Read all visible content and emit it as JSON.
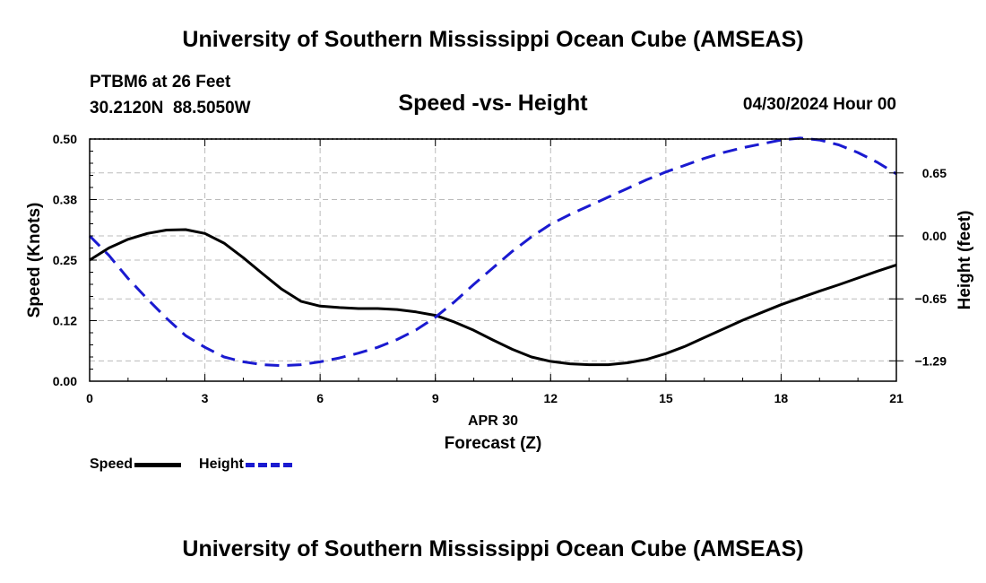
{
  "header": {
    "title": "University of Southern Mississippi Ocean Cube (AMSEAS)",
    "station_name": "PTBM6 at 26 Feet",
    "coordinates": "30.2120N  88.5050W",
    "chart_title": "Speed -vs- Height",
    "datetime": "04/30/2024 Hour 00"
  },
  "footer": {
    "title": "University of Southern Mississippi Ocean Cube (AMSEAS)"
  },
  "legend": {
    "speed_label": "Speed",
    "height_label": "Height"
  },
  "colors": {
    "speed": "#000000",
    "height": "#1a1ad0",
    "grid": "#bbbbbb"
  },
  "chart_data": {
    "type": "line",
    "xlabel_date": "APR 30",
    "xlabel": "Forecast (Z)",
    "ylabel": "Speed (Knots)",
    "y2label": "Height (feet)",
    "xlim": [
      0,
      21
    ],
    "ylim": [
      0,
      0.5
    ],
    "y2lim": [
      -1.5,
      1.0
    ],
    "x_ticks": [
      0,
      3,
      6,
      9,
      12,
      15,
      18,
      21
    ],
    "x_tick_labels": [
      "0",
      "3",
      "6",
      "9",
      "12",
      "15",
      "18",
      "21"
    ],
    "y_ticks": [
      0.0,
      0.125,
      0.25,
      0.375,
      0.5
    ],
    "y_tick_labels": [
      "0.00",
      "0.12",
      "0.25",
      "0.38",
      "0.50"
    ],
    "y2_ticks": [
      -1.29,
      -0.65,
      0.0,
      0.65
    ],
    "y2_tick_labels": [
      "−1.29",
      "−0.65",
      "0.00",
      "0.65"
    ],
    "series": [
      {
        "name": "Speed",
        "axis": "left",
        "style": "solid",
        "x": [
          0,
          0.5,
          1,
          1.5,
          2,
          2.5,
          3,
          3.5,
          4,
          4.5,
          5,
          5.5,
          6,
          6.5,
          7,
          7.5,
          8,
          8.5,
          9,
          9.5,
          10,
          10.5,
          11,
          11.5,
          12,
          12.5,
          13,
          13.5,
          14,
          14.5,
          15,
          15.5,
          16,
          16.5,
          17,
          17.5,
          18,
          18.5,
          19,
          19.5,
          20,
          20.5,
          21
        ],
        "values": [
          0.25,
          0.275,
          0.293,
          0.305,
          0.312,
          0.313,
          0.305,
          0.285,
          0.255,
          0.222,
          0.19,
          0.165,
          0.155,
          0.152,
          0.15,
          0.15,
          0.148,
          0.143,
          0.136,
          0.122,
          0.105,
          0.085,
          0.066,
          0.05,
          0.041,
          0.036,
          0.034,
          0.034,
          0.038,
          0.045,
          0.057,
          0.072,
          0.09,
          0.108,
          0.126,
          0.142,
          0.158,
          0.172,
          0.186,
          0.199,
          0.213,
          0.227,
          0.24
        ]
      },
      {
        "name": "Height",
        "axis": "right",
        "style": "dashed",
        "x": [
          0,
          0.5,
          1,
          1.5,
          2,
          2.5,
          3,
          3.5,
          4,
          4.5,
          5,
          5.5,
          6,
          6.5,
          7,
          7.5,
          8,
          8.5,
          9,
          9.5,
          10,
          10.5,
          11,
          11.5,
          12,
          12.5,
          13,
          13.5,
          14,
          14.5,
          15,
          15.5,
          16,
          16.5,
          17,
          17.5,
          18,
          18.5,
          19,
          19.5,
          20,
          20.5,
          21
        ],
        "values": [
          0.0,
          -0.2,
          -0.44,
          -0.65,
          -0.85,
          -1.03,
          -1.15,
          -1.25,
          -1.3,
          -1.33,
          -1.34,
          -1.33,
          -1.3,
          -1.26,
          -1.21,
          -1.15,
          -1.07,
          -0.97,
          -0.84,
          -0.68,
          -0.5,
          -0.33,
          -0.16,
          -0.01,
          0.12,
          0.22,
          0.31,
          0.4,
          0.49,
          0.58,
          0.66,
          0.73,
          0.8,
          0.86,
          0.91,
          0.95,
          0.99,
          1.01,
          0.99,
          0.94,
          0.86,
          0.76,
          0.64
        ]
      }
    ]
  }
}
